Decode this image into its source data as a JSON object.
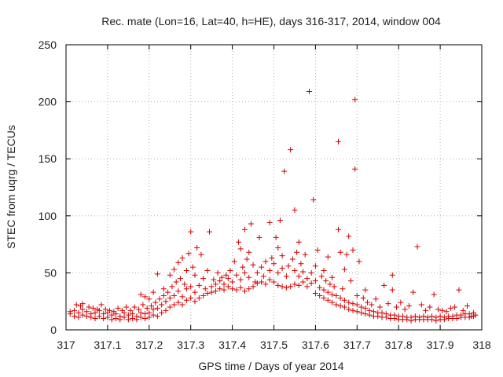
{
  "chart_data": {
    "type": "scatter",
    "title": "Rec. mate (Lon=16, Lat=40, h=HE), days 316-317, 2014, window 004",
    "xlabel": "GPS time / Days of year 2014",
    "ylabel": "STEC from uqrg / TECUs",
    "xlim": [
      317,
      318
    ],
    "ylim": [
      0,
      250
    ],
    "x_ticks": [
      317,
      317.1,
      317.2,
      317.3,
      317.4,
      317.5,
      317.6,
      317.7,
      317.8,
      317.9,
      318
    ],
    "x_tick_labels": [
      "317",
      "317.1",
      "317.2",
      "317.3",
      "317.4",
      "317.5",
      "317.6",
      "317.7",
      "317.8",
      "317.9",
      "318"
    ],
    "y_ticks": [
      0,
      50,
      100,
      150,
      200,
      250
    ],
    "y_tick_labels": [
      "0",
      "50",
      "100",
      "150",
      "200",
      "250"
    ],
    "grid": true,
    "marker": "plus",
    "color": "#d40000",
    "points": [
      [
        317.01,
        14
      ],
      [
        317.01,
        16
      ],
      [
        317.02,
        12
      ],
      [
        317.02,
        17
      ],
      [
        317.025,
        22
      ],
      [
        317.03,
        11
      ],
      [
        317.03,
        15
      ],
      [
        317.035,
        21
      ],
      [
        317.04,
        13
      ],
      [
        317.04,
        18
      ],
      [
        317.04,
        23
      ],
      [
        317.05,
        12
      ],
      [
        317.05,
        16
      ],
      [
        317.055,
        20
      ],
      [
        317.06,
        11
      ],
      [
        317.06,
        14
      ],
      [
        317.065,
        19
      ],
      [
        317.07,
        10
      ],
      [
        317.07,
        15
      ],
      [
        317.075,
        18
      ],
      [
        317.08,
        12
      ],
      [
        317.08,
        17
      ],
      [
        317.085,
        22
      ],
      [
        317.09,
        10
      ],
      [
        317.09,
        14
      ],
      [
        317.095,
        18
      ],
      [
        317.1,
        11
      ],
      [
        317.1,
        15
      ],
      [
        317.105,
        17
      ],
      [
        317.11,
        9
      ],
      [
        317.11,
        13
      ],
      [
        317.115,
        16
      ],
      [
        317.12,
        10
      ],
      [
        317.12,
        14
      ],
      [
        317.125,
        19
      ],
      [
        317.13,
        9
      ],
      [
        317.13,
        12
      ],
      [
        317.135,
        17
      ],
      [
        317.14,
        11
      ],
      [
        317.14,
        15
      ],
      [
        317.145,
        20
      ],
      [
        317.15,
        9
      ],
      [
        317.15,
        13
      ],
      [
        317.155,
        17
      ],
      [
        317.16,
        10
      ],
      [
        317.16,
        14
      ],
      [
        317.165,
        20
      ],
      [
        317.17,
        9
      ],
      [
        317.17,
        12
      ],
      [
        317.175,
        18
      ],
      [
        317.18,
        11
      ],
      [
        317.18,
        15
      ],
      [
        317.18,
        31
      ],
      [
        317.185,
        22
      ],
      [
        317.19,
        10
      ],
      [
        317.19,
        14
      ],
      [
        317.19,
        29
      ],
      [
        317.195,
        19
      ],
      [
        317.2,
        11
      ],
      [
        317.2,
        15
      ],
      [
        317.2,
        27
      ],
      [
        317.205,
        21
      ],
      [
        317.21,
        13
      ],
      [
        317.21,
        18
      ],
      [
        317.21,
        33
      ],
      [
        317.215,
        24
      ],
      [
        317.22,
        12
      ],
      [
        317.22,
        19
      ],
      [
        317.22,
        49
      ],
      [
        317.225,
        27
      ],
      [
        317.23,
        15
      ],
      [
        317.23,
        22
      ],
      [
        317.235,
        30
      ],
      [
        317.235,
        36
      ],
      [
        317.24,
        17
      ],
      [
        317.24,
        25
      ],
      [
        317.245,
        33
      ],
      [
        317.25,
        20
      ],
      [
        317.25,
        28
      ],
      [
        317.25,
        48
      ],
      [
        317.255,
        38
      ],
      [
        317.26,
        22
      ],
      [
        317.26,
        30
      ],
      [
        317.26,
        53
      ],
      [
        317.265,
        42
      ],
      [
        317.27,
        24
      ],
      [
        317.27,
        34
      ],
      [
        317.27,
        59
      ],
      [
        317.275,
        45
      ],
      [
        317.28,
        22
      ],
      [
        317.28,
        29
      ],
      [
        317.28,
        63
      ],
      [
        317.285,
        40
      ],
      [
        317.29,
        26
      ],
      [
        317.29,
        36
      ],
      [
        317.29,
        52
      ],
      [
        317.295,
        67
      ],
      [
        317.3,
        28
      ],
      [
        317.3,
        38
      ],
      [
        317.3,
        86
      ],
      [
        317.305,
        55
      ],
      [
        317.31,
        25
      ],
      [
        317.31,
        33
      ],
      [
        317.31,
        48
      ],
      [
        317.315,
        72
      ],
      [
        317.32,
        28
      ],
      [
        317.32,
        39
      ],
      [
        317.325,
        66
      ],
      [
        317.33,
        30
      ],
      [
        317.33,
        45
      ],
      [
        317.335,
        36
      ],
      [
        317.34,
        32
      ],
      [
        317.34,
        52
      ],
      [
        317.345,
        86
      ],
      [
        317.35,
        33
      ],
      [
        317.35,
        38
      ],
      [
        317.355,
        44
      ],
      [
        317.36,
        34
      ],
      [
        317.36,
        40
      ],
      [
        317.365,
        50
      ],
      [
        317.37,
        36
      ],
      [
        317.37,
        43
      ],
      [
        317.375,
        46
      ],
      [
        317.38,
        35
      ],
      [
        317.38,
        40
      ],
      [
        317.385,
        48
      ],
      [
        317.39,
        38
      ],
      [
        317.39,
        45
      ],
      [
        317.395,
        52
      ],
      [
        317.4,
        36
      ],
      [
        317.4,
        42
      ],
      [
        317.405,
        60
      ],
      [
        317.41,
        35
      ],
      [
        317.41,
        48
      ],
      [
        317.415,
        77
      ],
      [
        317.42,
        37
      ],
      [
        317.42,
        44
      ],
      [
        317.42,
        71
      ],
      [
        317.425,
        55
      ],
      [
        317.43,
        34
      ],
      [
        317.43,
        50
      ],
      [
        317.43,
        88
      ],
      [
        317.435,
        62
      ],
      [
        317.44,
        36
      ],
      [
        317.44,
        46
      ],
      [
        317.44,
        68
      ],
      [
        317.445,
        93
      ],
      [
        317.45,
        38
      ],
      [
        317.45,
        57
      ],
      [
        317.455,
        42
      ],
      [
        317.46,
        41
      ],
      [
        317.46,
        50
      ],
      [
        317.465,
        81
      ],
      [
        317.47,
        42
      ],
      [
        317.47,
        55
      ],
      [
        317.475,
        47
      ],
      [
        317.48,
        40
      ],
      [
        317.48,
        60
      ],
      [
        317.49,
        44
      ],
      [
        317.49,
        52
      ],
      [
        317.49,
        94
      ],
      [
        317.495,
        63
      ],
      [
        317.5,
        42
      ],
      [
        317.5,
        58
      ],
      [
        317.505,
        81
      ],
      [
        317.51,
        39
      ],
      [
        317.51,
        50
      ],
      [
        317.51,
        72
      ],
      [
        317.515,
        96
      ],
      [
        317.52,
        38
      ],
      [
        317.52,
        54
      ],
      [
        317.52,
        65
      ],
      [
        317.525,
        139
      ],
      [
        317.53,
        37
      ],
      [
        317.53,
        47
      ],
      [
        317.535,
        56
      ],
      [
        317.54,
        38
      ],
      [
        317.54,
        158
      ],
      [
        317.545,
        62
      ],
      [
        317.55,
        40
      ],
      [
        317.55,
        52
      ],
      [
        317.55,
        105
      ],
      [
        317.555,
        68
      ],
      [
        317.56,
        39
      ],
      [
        317.56,
        47
      ],
      [
        317.56,
        77
      ],
      [
        317.565,
        58
      ],
      [
        317.57,
        42
      ],
      [
        317.57,
        51
      ],
      [
        317.575,
        66
      ],
      [
        317.58,
        38
      ],
      [
        317.58,
        45
      ],
      [
        317.585,
        209
      ],
      [
        317.59,
        41
      ],
      [
        317.59,
        50
      ],
      [
        317.595,
        114
      ],
      [
        317.6,
        32
      ],
      [
        317.6,
        43
      ],
      [
        317.6,
        56
      ],
      [
        317.605,
        70
      ],
      [
        317.61,
        30
      ],
      [
        317.61,
        37
      ],
      [
        317.615,
        47
      ],
      [
        317.62,
        28
      ],
      [
        317.62,
        35
      ],
      [
        317.62,
        52
      ],
      [
        317.625,
        43
      ],
      [
        317.63,
        26
      ],
      [
        317.63,
        33
      ],
      [
        317.63,
        64
      ],
      [
        317.635,
        40
      ],
      [
        317.64,
        24
      ],
      [
        317.64,
        31
      ],
      [
        317.64,
        46
      ],
      [
        317.645,
        38
      ],
      [
        317.65,
        22
      ],
      [
        317.65,
        30
      ],
      [
        317.655,
        165
      ],
      [
        317.655,
        88
      ],
      [
        317.66,
        21
      ],
      [
        317.66,
        28
      ],
      [
        317.66,
        68
      ],
      [
        317.665,
        36
      ],
      [
        317.67,
        20
      ],
      [
        317.67,
        26
      ],
      [
        317.67,
        53
      ],
      [
        317.675,
        66
      ],
      [
        317.68,
        18
      ],
      [
        317.68,
        24
      ],
      [
        317.68,
        82
      ],
      [
        317.685,
        43
      ],
      [
        317.69,
        17
      ],
      [
        317.69,
        23
      ],
      [
        317.69,
        70
      ],
      [
        317.695,
        202
      ],
      [
        317.695,
        141
      ],
      [
        317.7,
        16
      ],
      [
        317.7,
        22
      ],
      [
        317.7,
        30
      ],
      [
        317.705,
        60
      ],
      [
        317.71,
        15
      ],
      [
        317.71,
        20
      ],
      [
        317.715,
        28
      ],
      [
        317.72,
        14
      ],
      [
        317.72,
        19
      ],
      [
        317.72,
        35
      ],
      [
        317.725,
        24
      ],
      [
        317.73,
        13
      ],
      [
        317.73,
        17
      ],
      [
        317.735,
        22
      ],
      [
        317.74,
        12
      ],
      [
        317.74,
        16
      ],
      [
        317.745,
        27
      ],
      [
        317.75,
        12
      ],
      [
        317.75,
        15
      ],
      [
        317.755,
        20
      ],
      [
        317.76,
        11
      ],
      [
        317.76,
        15
      ],
      [
        317.765,
        39
      ],
      [
        317.77,
        11
      ],
      [
        317.77,
        14
      ],
      [
        317.775,
        23
      ],
      [
        317.78,
        10
      ],
      [
        317.78,
        13
      ],
      [
        317.785,
        48
      ],
      [
        317.785,
        35
      ],
      [
        317.79,
        10
      ],
      [
        317.79,
        13
      ],
      [
        317.795,
        20
      ],
      [
        317.8,
        9
      ],
      [
        317.8,
        12
      ],
      [
        317.805,
        24
      ],
      [
        317.81,
        9
      ],
      [
        317.81,
        12
      ],
      [
        317.815,
        18
      ],
      [
        317.82,
        9
      ],
      [
        317.82,
        11
      ],
      [
        317.825,
        21
      ],
      [
        317.83,
        8
      ],
      [
        317.83,
        11
      ],
      [
        317.835,
        33
      ],
      [
        317.84,
        9
      ],
      [
        317.84,
        12
      ],
      [
        317.845,
        73
      ],
      [
        317.85,
        9
      ],
      [
        317.85,
        11
      ],
      [
        317.855,
        22
      ],
      [
        317.86,
        9
      ],
      [
        317.86,
        12
      ],
      [
        317.865,
        17
      ],
      [
        317.87,
        9
      ],
      [
        317.87,
        11
      ],
      [
        317.875,
        20
      ],
      [
        317.88,
        9
      ],
      [
        317.88,
        12
      ],
      [
        317.885,
        31
      ],
      [
        317.89,
        8
      ],
      [
        317.89,
        11
      ],
      [
        317.895,
        18
      ],
      [
        317.9,
        9
      ],
      [
        317.9,
        12
      ],
      [
        317.905,
        17
      ],
      [
        317.91,
        9
      ],
      [
        317.91,
        11
      ],
      [
        317.915,
        16
      ],
      [
        317.92,
        10
      ],
      [
        317.92,
        12
      ],
      [
        317.925,
        19
      ],
      [
        317.93,
        10
      ],
      [
        317.93,
        12
      ],
      [
        317.935,
        20
      ],
      [
        317.94,
        10
      ],
      [
        317.94,
        13
      ],
      [
        317.945,
        35
      ],
      [
        317.95,
        11
      ],
      [
        317.95,
        13
      ],
      [
        317.955,
        17
      ],
      [
        317.96,
        11
      ],
      [
        317.96,
        14
      ],
      [
        317.965,
        21
      ],
      [
        317.97,
        11
      ],
      [
        317.97,
        14
      ],
      [
        317.975,
        12
      ],
      [
        317.98,
        12
      ],
      [
        317.98,
        15
      ],
      [
        317.985,
        13
      ]
    ]
  }
}
